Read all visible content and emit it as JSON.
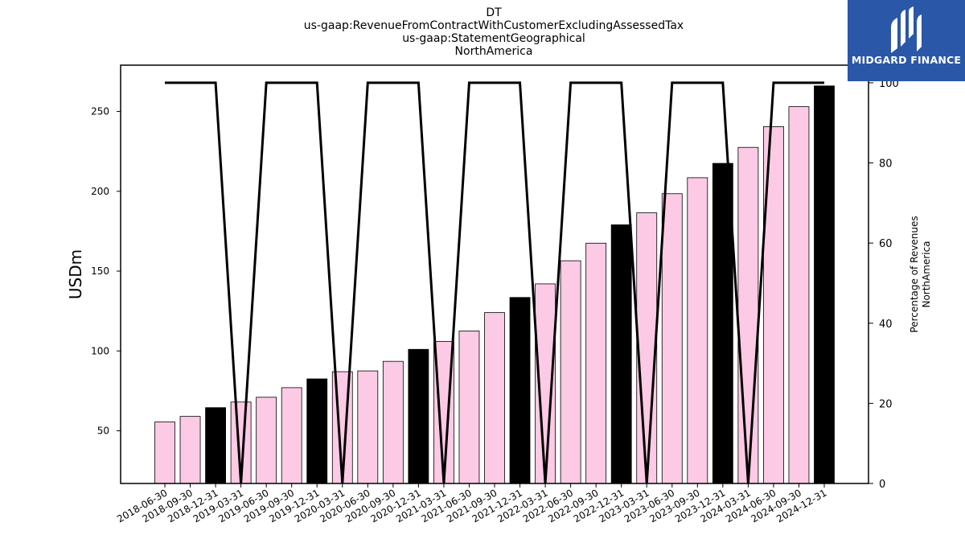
{
  "chart_data": {
    "type": "bar",
    "title_lines": [
      "DT",
      "us-gaap:RevenueFromContractWithCustomerExcludingAssessedTax",
      "us-gaap:StatementGeographical",
      "NorthAmerica"
    ],
    "ylabel": "USDm",
    "y2label_lines": [
      "Percentage of Revenues",
      "NorthAmerica"
    ],
    "ylim": [
      17,
      279
    ],
    "y2lim": [
      0,
      104.4
    ],
    "yticks": [
      50,
      100,
      150,
      200,
      250
    ],
    "y2ticks": [
      0,
      20,
      40,
      60,
      80,
      100
    ],
    "categories": [
      "2018-06-30",
      "2018-09-30",
      "2018-12-31",
      "2019-03-31",
      "2019-06-30",
      "2019-09-30",
      "2019-12-31",
      "2020-03-31",
      "2020-06-30",
      "2020-09-30",
      "2020-12-31",
      "2021-03-31",
      "2021-06-30",
      "2021-09-30",
      "2021-12-31",
      "2022-03-31",
      "2022-06-30",
      "2022-09-30",
      "2022-12-31",
      "2023-03-31",
      "2023-06-30",
      "2023-09-30",
      "2023-12-31",
      "2024-03-31",
      "2024-06-30",
      "2024-09-30",
      "2024-12-31"
    ],
    "series": [
      {
        "values": [
          55.5,
          59,
          64.5,
          68,
          71,
          77,
          82.5,
          87,
          87.5,
          93.5,
          101,
          106,
          112.5,
          124,
          133.5,
          142,
          156.5,
          167.5,
          179,
          186.5,
          198.5,
          208.5,
          217.5,
          227.5,
          240.5,
          253,
          266
        ]
      },
      {
        "values": [
          100,
          100,
          100,
          0,
          100,
          100,
          100,
          0,
          100,
          100,
          100,
          0,
          100,
          100,
          100,
          0,
          100,
          100,
          100,
          0,
          100,
          100,
          100,
          0,
          100,
          100,
          100
        ]
      }
    ],
    "highlight_indices": [
      2,
      6,
      10,
      14,
      18,
      22,
      26
    ],
    "colors": {
      "bar": "#fccae4",
      "bar_highlight": "#000000",
      "line": "#000000",
      "logo_bg": "#2a57a8"
    }
  },
  "logo": {
    "text": "MIDGARD FINANCE"
  }
}
